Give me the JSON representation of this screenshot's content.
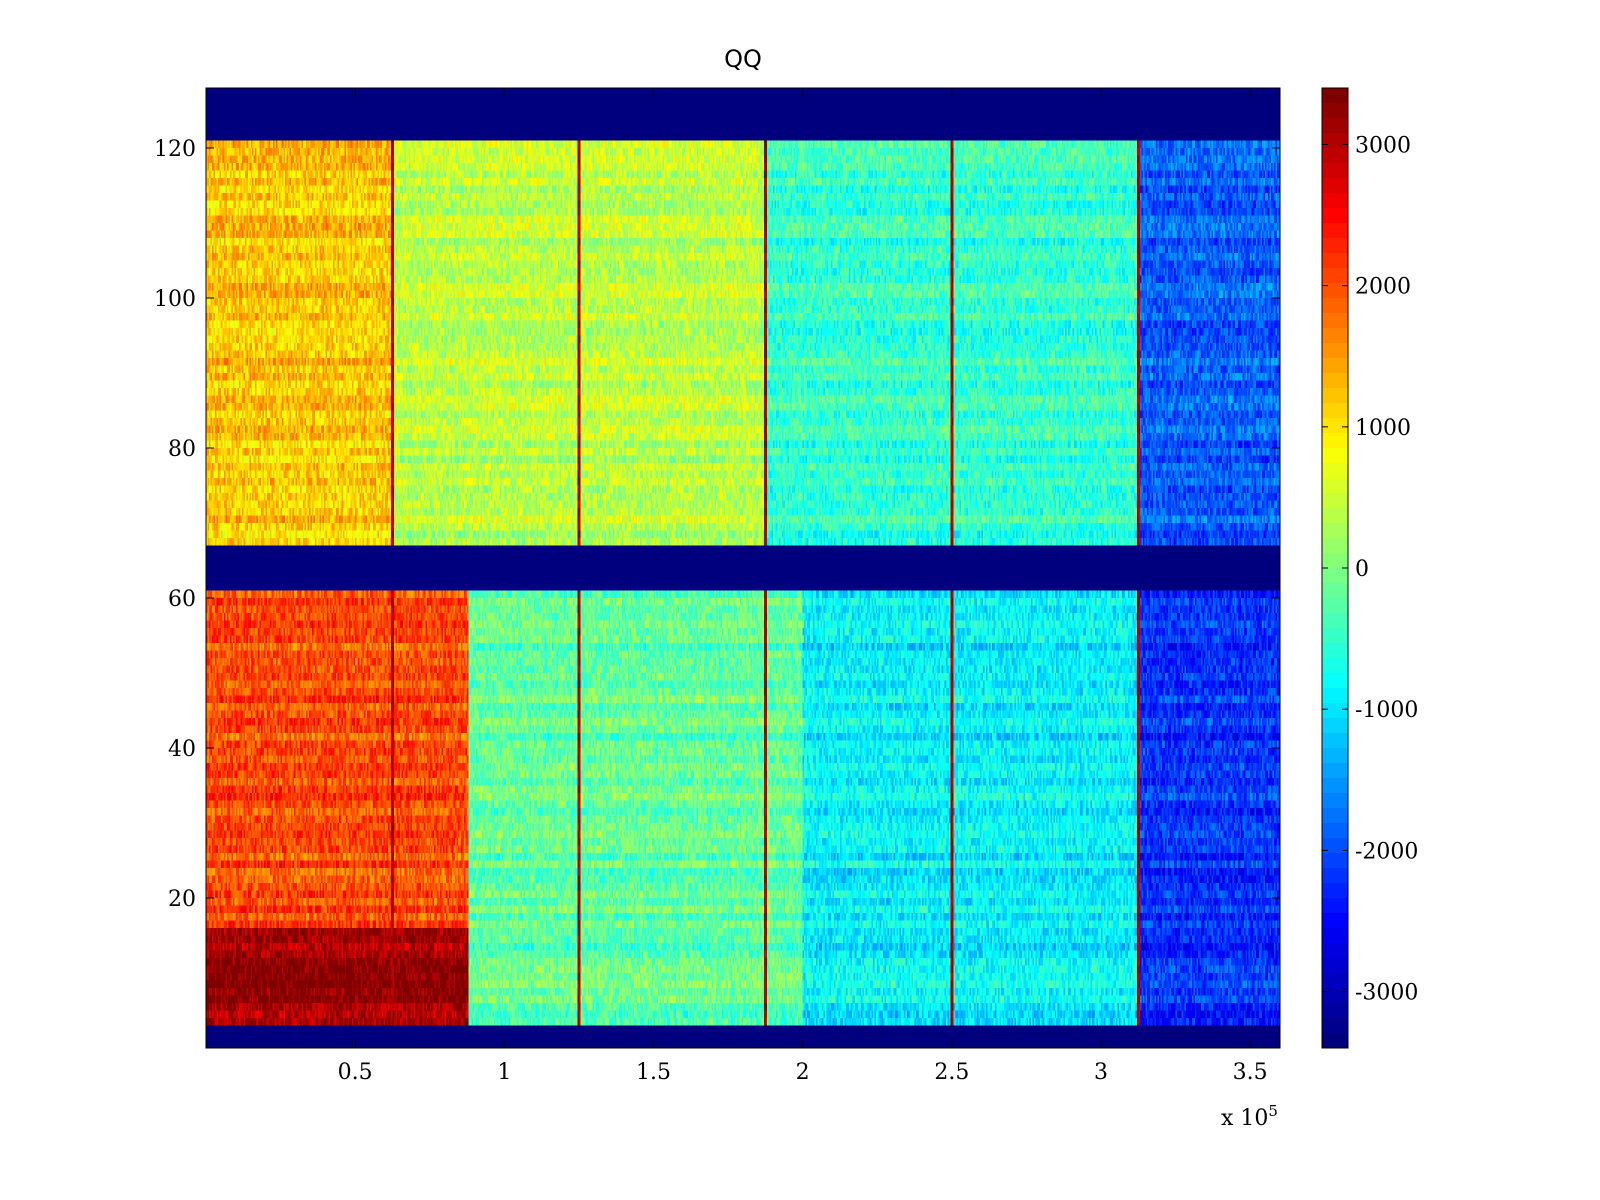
{
  "chart_data": {
    "type": "heatmap",
    "title": "QQ",
    "xlabel": "",
    "ylabel": "",
    "x_multiplier": "x 10",
    "x_multiplier_exponent": "5",
    "xlim": [
      0,
      360000
    ],
    "ylim": [
      0,
      128
    ],
    "x_ticks": [
      0.5,
      1,
      1.5,
      2,
      2.5,
      3,
      3.5
    ],
    "x_tick_labels": [
      "0.5",
      "1",
      "1.5",
      "2",
      "2.5",
      "3",
      "3.5"
    ],
    "y_ticks": [
      20,
      40,
      60,
      80,
      100,
      120
    ],
    "y_tick_labels": [
      "20",
      "40",
      "60",
      "80",
      "100",
      "120"
    ],
    "colorbar": {
      "colormap": "jet",
      "clim": [
        -3400,
        3400
      ],
      "ticks": [
        3000,
        2000,
        1000,
        0,
        -1000,
        -2000,
        -3000
      ],
      "tick_labels": [
        "3000",
        "2000",
        "1000",
        "0",
        "-1000",
        "-2000",
        "-3000"
      ]
    },
    "empty_row_bands": [
      [
        0,
        3
      ],
      [
        61,
        67
      ],
      [
        121,
        128
      ]
    ],
    "bright_vertical_lines_x": [
      62500,
      125000,
      187500,
      250000,
      312500
    ],
    "approx_value_by_region": [
      {
        "rows": [
          3,
          16
        ],
        "x_range": [
          0,
          88000
        ],
        "value": 3200
      },
      {
        "rows": [
          16,
          61
        ],
        "x_range": [
          0,
          88000
        ],
        "value": 2000
      },
      {
        "rows": [
          3,
          61
        ],
        "x_range": [
          88000,
          200000
        ],
        "value": -200
      },
      {
        "rows": [
          3,
          61
        ],
        "x_range": [
          200000,
          312000
        ],
        "value": -900
      },
      {
        "rows": [
          3,
          61
        ],
        "x_range": [
          312000,
          360000
        ],
        "value": -2200
      },
      {
        "rows": [
          67,
          121
        ],
        "x_range": [
          0,
          62500
        ],
        "value": 1200
      },
      {
        "rows": [
          67,
          121
        ],
        "x_range": [
          62500,
          187500
        ],
        "value": 400
      },
      {
        "rows": [
          67,
          121
        ],
        "x_range": [
          187500,
          312500
        ],
        "value": -500
      },
      {
        "rows": [
          67,
          121
        ],
        "x_range": [
          312500,
          360000
        ],
        "value": -1900
      }
    ]
  }
}
